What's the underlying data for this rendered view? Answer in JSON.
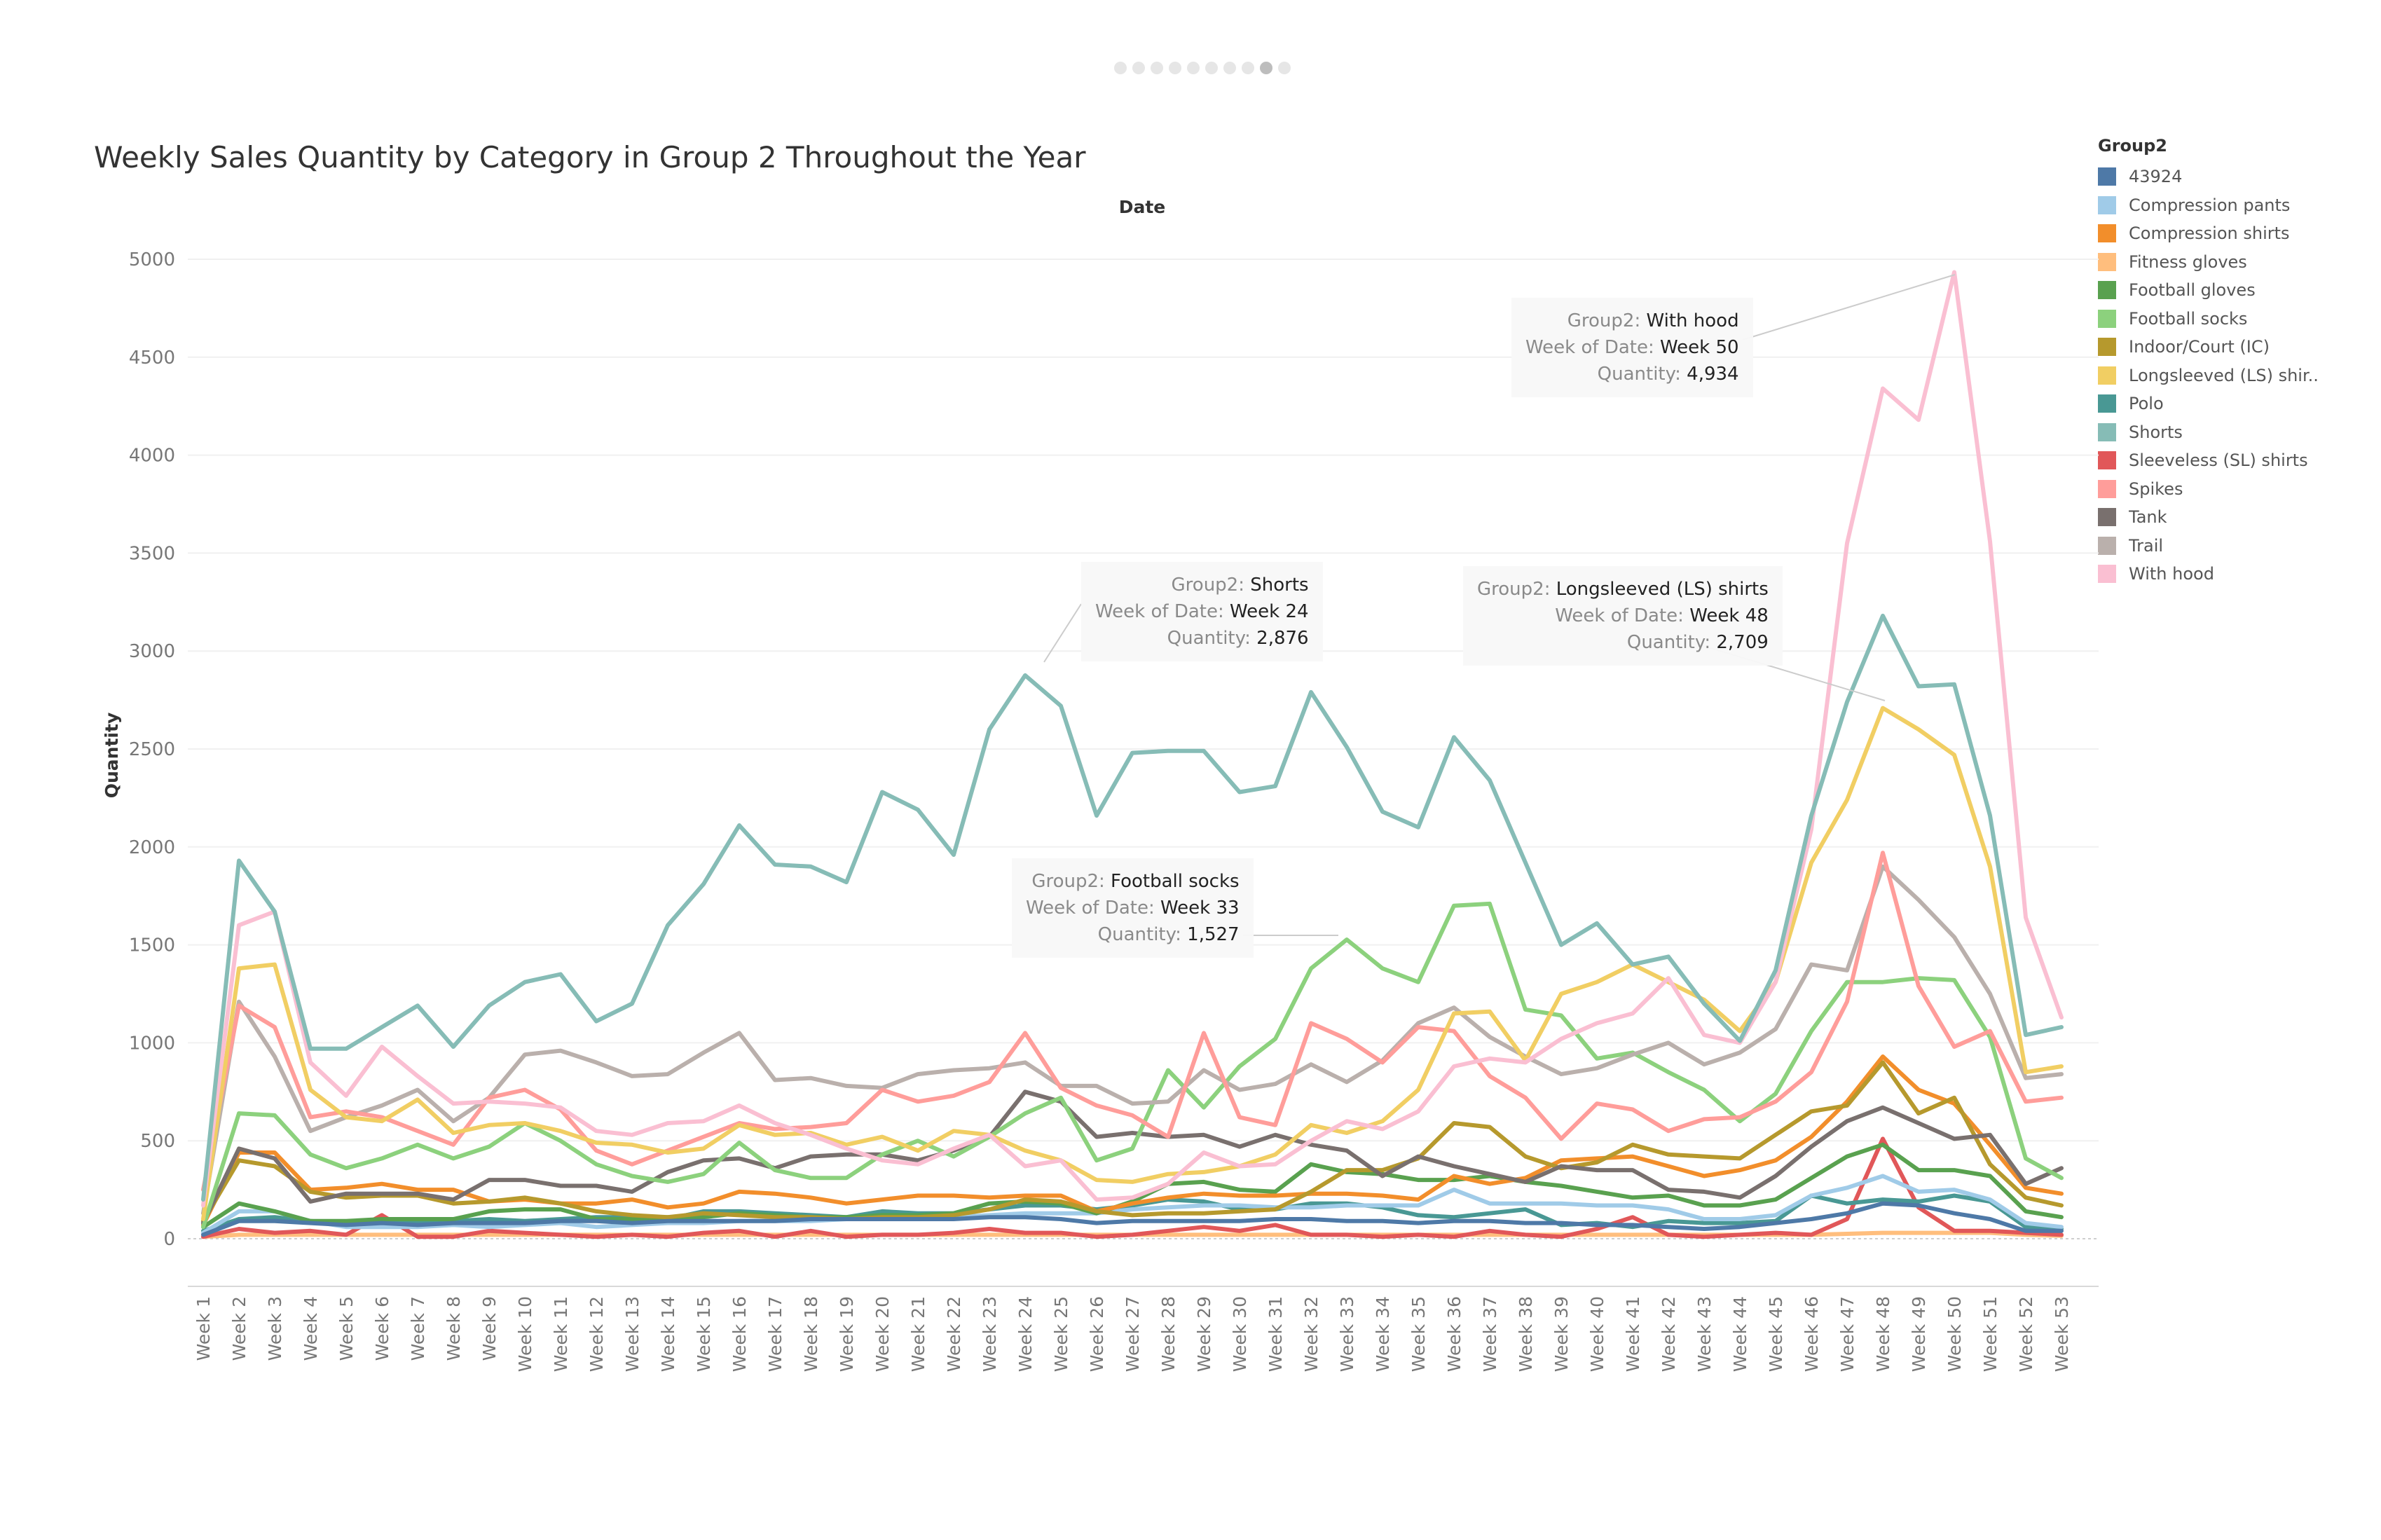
{
  "pager": {
    "count": 10,
    "active": 9
  },
  "chart_data": {
    "type": "line",
    "title": "Weekly Sales Quantity by Category in Group 2 Throughout the Year",
    "column_header": "Date",
    "ylabel": "Quantity",
    "xlabel": "",
    "ylim": [
      0,
      5000
    ],
    "yticks": [
      0,
      500,
      1000,
      1500,
      2000,
      2500,
      3000,
      3500,
      4000,
      4500,
      5000
    ],
    "grid": true,
    "legend_position": "right",
    "legend_title": "Group2",
    "categories": [
      "Week 1",
      "Week 2",
      "Week 3",
      "Week 4",
      "Week 5",
      "Week 6",
      "Week 7",
      "Week 8",
      "Week 9",
      "Week 10",
      "Week 11",
      "Week 12",
      "Week 13",
      "Week 14",
      "Week 15",
      "Week 16",
      "Week 17",
      "Week 18",
      "Week 19",
      "Week 20",
      "Week 21",
      "Week 22",
      "Week 23",
      "Week 24",
      "Week 25",
      "Week 26",
      "Week 27",
      "Week 28",
      "Week 29",
      "Week 30",
      "Week 31",
      "Week 32",
      "Week 33",
      "Week 34",
      "Week 35",
      "Week 36",
      "Week 37",
      "Week 38",
      "Week 39",
      "Week 40",
      "Week 41",
      "Week 42",
      "Week 43",
      "Week 44",
      "Week 45",
      "Week 46",
      "Week 47",
      "Week 48",
      "Week 49",
      "Week 50",
      "Week 51",
      "Week 52",
      "Week 53"
    ],
    "series": [
      {
        "name": "43924",
        "color": "#4e79a7",
        "values": [
          20,
          90,
          90,
          80,
          70,
          80,
          70,
          80,
          80,
          80,
          90,
          90,
          80,
          90,
          90,
          90,
          90,
          100,
          100,
          100,
          100,
          100,
          110,
          110,
          100,
          80,
          90,
          90,
          90,
          90,
          100,
          100,
          90,
          90,
          80,
          90,
          90,
          80,
          80,
          70,
          70,
          60,
          50,
          60,
          80,
          100,
          130,
          180,
          170,
          130,
          100,
          40,
          40
        ]
      },
      {
        "name": "Compression pants",
        "color": "#a0cbe8",
        "values": [
          30,
          140,
          140,
          90,
          60,
          60,
          60,
          70,
          60,
          70,
          80,
          60,
          70,
          80,
          80,
          90,
          90,
          90,
          100,
          100,
          110,
          110,
          120,
          130,
          130,
          130,
          150,
          160,
          170,
          170,
          160,
          160,
          170,
          170,
          170,
          250,
          180,
          180,
          180,
          170,
          170,
          150,
          100,
          100,
          120,
          220,
          260,
          320,
          240,
          250,
          200,
          80,
          60
        ]
      },
      {
        "name": "Compression shirts",
        "color": "#f28e2b",
        "values": [
          70,
          440,
          440,
          250,
          260,
          280,
          250,
          250,
          190,
          200,
          180,
          180,
          200,
          160,
          180,
          240,
          230,
          210,
          180,
          200,
          220,
          220,
          210,
          220,
          220,
          140,
          180,
          210,
          230,
          220,
          220,
          230,
          230,
          220,
          200,
          320,
          280,
          310,
          400,
          410,
          420,
          370,
          320,
          350,
          400,
          520,
          700,
          930,
          760,
          690,
          480,
          260,
          230
        ]
      },
      {
        "name": "Fitness gloves",
        "color": "#ffbe7d",
        "values": [
          10,
          20,
          20,
          20,
          20,
          20,
          20,
          20,
          20,
          20,
          20,
          20,
          20,
          20,
          20,
          20,
          20,
          20,
          20,
          20,
          20,
          20,
          20,
          20,
          20,
          20,
          20,
          20,
          20,
          20,
          20,
          20,
          20,
          20,
          20,
          20,
          20,
          20,
          20,
          20,
          20,
          20,
          20,
          20,
          20,
          20,
          25,
          30,
          30,
          30,
          30,
          20,
          15
        ]
      },
      {
        "name": "Football gloves",
        "color": "#59a14f",
        "values": [
          60,
          180,
          140,
          90,
          90,
          100,
          100,
          100,
          140,
          150,
          150,
          100,
          100,
          110,
          110,
          130,
          120,
          110,
          110,
          120,
          120,
          130,
          180,
          190,
          180,
          130,
          190,
          280,
          290,
          250,
          240,
          380,
          340,
          330,
          300,
          300,
          320,
          290,
          270,
          240,
          210,
          220,
          170,
          170,
          200,
          310,
          420,
          480,
          350,
          350,
          320,
          140,
          110
        ]
      },
      {
        "name": "Football socks",
        "color": "#8cd17d",
        "values": [
          60,
          640,
          630,
          430,
          360,
          410,
          480,
          410,
          470,
          590,
          500,
          380,
          320,
          290,
          330,
          490,
          350,
          310,
          310,
          430,
          500,
          420,
          520,
          640,
          720,
          400,
          460,
          860,
          670,
          880,
          1020,
          1380,
          1527,
          1380,
          1310,
          1700,
          1710,
          1170,
          1140,
          920,
          950,
          850,
          760,
          600,
          740,
          1060,
          1310,
          1310,
          1330,
          1320,
          1030,
          410,
          310
        ]
      },
      {
        "name": "Indoor/Court (IC)",
        "color": "#b6992d",
        "values": [
          90,
          400,
          370,
          240,
          210,
          220,
          220,
          180,
          190,
          210,
          180,
          140,
          120,
          110,
          130,
          120,
          110,
          110,
          100,
          110,
          110,
          120,
          150,
          200,
          190,
          140,
          120,
          130,
          130,
          140,
          150,
          240,
          350,
          350,
          410,
          590,
          570,
          420,
          360,
          390,
          480,
          430,
          420,
          410,
          530,
          650,
          680,
          900,
          640,
          720,
          380,
          210,
          170
        ]
      },
      {
        "name": "Longsleeved (LS) shirts",
        "color": "#f1ce63",
        "values": [
          100,
          1380,
          1400,
          760,
          620,
          600,
          710,
          540,
          580,
          590,
          550,
          490,
          480,
          440,
          460,
          580,
          530,
          540,
          480,
          520,
          450,
          550,
          530,
          450,
          400,
          300,
          290,
          330,
          340,
          370,
          430,
          580,
          540,
          600,
          760,
          1150,
          1160,
          910,
          1250,
          1310,
          1400,
          1310,
          1220,
          1060,
          1310,
          1920,
          2240,
          2709,
          2600,
          2470,
          1900,
          850,
          880
        ]
      },
      {
        "name": "Polo",
        "color": "#499894",
        "values": [
          40,
          100,
          110,
          90,
          80,
          90,
          90,
          90,
          100,
          90,
          100,
          110,
          110,
          100,
          140,
          140,
          130,
          120,
          110,
          140,
          130,
          130,
          150,
          170,
          170,
          150,
          170,
          200,
          190,
          150,
          150,
          180,
          180,
          160,
          120,
          110,
          130,
          150,
          70,
          80,
          60,
          90,
          80,
          80,
          90,
          220,
          180,
          200,
          190,
          220,
          190,
          60,
          50
        ]
      },
      {
        "name": "Shorts",
        "color": "#86bcb6",
        "values": [
          200,
          1930,
          1670,
          970,
          970,
          1080,
          1190,
          980,
          1190,
          1310,
          1350,
          1110,
          1200,
          1600,
          1810,
          2110,
          1910,
          1900,
          1820,
          2280,
          2190,
          1960,
          2600,
          2876,
          2720,
          2160,
          2480,
          2490,
          2490,
          2280,
          2310,
          2790,
          2510,
          2180,
          2100,
          2560,
          2340,
          1920,
          1500,
          1610,
          1400,
          1440,
          1200,
          1010,
          1370,
          2160,
          2740,
          3180,
          2820,
          2830,
          2160,
          1040,
          1080
        ]
      },
      {
        "name": "Sleeveless (SL) shirts",
        "color": "#e15759",
        "values": [
          10,
          50,
          30,
          40,
          20,
          120,
          10,
          10,
          40,
          30,
          20,
          10,
          20,
          10,
          30,
          40,
          10,
          40,
          10,
          20,
          20,
          30,
          50,
          30,
          30,
          10,
          20,
          40,
          60,
          40,
          70,
          20,
          20,
          10,
          20,
          10,
          40,
          20,
          10,
          50,
          110,
          20,
          10,
          20,
          30,
          20,
          100,
          510,
          160,
          40,
          40,
          30,
          20
        ]
      },
      {
        "name": "Spikes",
        "color": "#ff9d9a",
        "values": [
          250,
          1190,
          1080,
          620,
          650,
          620,
          550,
          480,
          720,
          760,
          660,
          450,
          380,
          450,
          520,
          590,
          560,
          570,
          590,
          760,
          700,
          730,
          800,
          1050,
          770,
          680,
          630,
          520,
          1050,
          620,
          580,
          1100,
          1020,
          900,
          1080,
          1060,
          830,
          720,
          510,
          690,
          660,
          550,
          610,
          620,
          700,
          850,
          1210,
          1970,
          1290,
          980,
          1060,
          700,
          720
        ]
      },
      {
        "name": "Tank",
        "color": "#79706e",
        "values": [
          80,
          460,
          410,
          190,
          230,
          230,
          230,
          200,
          300,
          300,
          270,
          270,
          240,
          340,
          400,
          410,
          360,
          420,
          430,
          430,
          400,
          450,
          520,
          750,
          700,
          520,
          540,
          520,
          530,
          470,
          530,
          480,
          450,
          320,
          420,
          370,
          330,
          290,
          370,
          350,
          350,
          250,
          240,
          210,
          320,
          470,
          600,
          670,
          590,
          510,
          530,
          280,
          360
        ]
      },
      {
        "name": "Trail",
        "color": "#bab0ac",
        "values": [
          130,
          1210,
          930,
          550,
          620,
          680,
          760,
          600,
          720,
          940,
          960,
          900,
          830,
          840,
          950,
          1050,
          810,
          820,
          780,
          770,
          840,
          860,
          870,
          900,
          780,
          780,
          690,
          700,
          860,
          760,
          790,
          890,
          800,
          910,
          1100,
          1180,
          1030,
          930,
          840,
          870,
          940,
          1000,
          890,
          950,
          1070,
          1400,
          1370,
          1900,
          1730,
          1540,
          1250,
          820,
          840
        ]
      },
      {
        "name": "With hood",
        "color": "#fabfd2",
        "values": [
          170,
          1600,
          1670,
          900,
          730,
          980,
          830,
          690,
          700,
          690,
          670,
          550,
          530,
          590,
          600,
          680,
          590,
          530,
          460,
          400,
          380,
          460,
          530,
          370,
          400,
          200,
          210,
          280,
          440,
          370,
          380,
          500,
          600,
          560,
          650,
          880,
          920,
          900,
          1020,
          1100,
          1150,
          1330,
          1040,
          1000,
          1310,
          2090,
          3550,
          4340,
          4180,
          4934,
          3560,
          1640,
          1130
        ]
      }
    ],
    "annotations": [
      {
        "series": "Shorts",
        "week": "Week 24",
        "quantity": "2,876"
      },
      {
        "series": "Longsleeved (LS) shirts",
        "week": "Week 48",
        "quantity": "2,709"
      },
      {
        "series": "Football socks",
        "week": "Week 33",
        "quantity": "1,527"
      },
      {
        "series": "With hood",
        "week": "Week 50",
        "quantity": "4,934"
      }
    ],
    "tooltip_labels": {
      "group": "Group2:",
      "week": "Week of Date:",
      "quantity": "Quantity:"
    }
  }
}
